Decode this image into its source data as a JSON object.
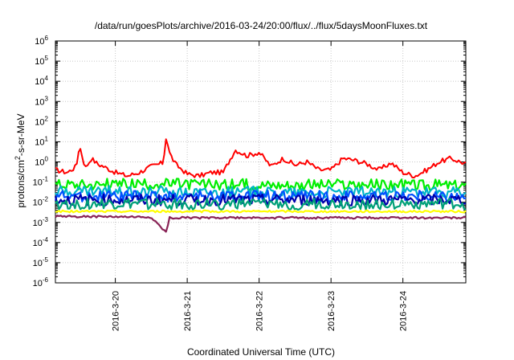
{
  "chart_data": {
    "type": "line",
    "title": "/data/run/goesPlots/archive/2016-03-24/20:00/flux/../flux/5daysMoonFluxes.txt",
    "xlabel": "Coordinated Universal Time (UTC)",
    "ylabel": {
      "prefix": "protons/cm",
      "superscript": "2",
      "suffix": "-s-sr-MeV"
    },
    "y_scale": "log",
    "ylim": [
      1e-06,
      1000000.0
    ],
    "y_ticks": [
      {
        "value": 1e-06,
        "base": "10",
        "exp": "-6"
      },
      {
        "value": 1e-05,
        "base": "10",
        "exp": "-5"
      },
      {
        "value": 0.0001,
        "base": "10",
        "exp": "-4"
      },
      {
        "value": 0.001,
        "base": "10",
        "exp": "-3"
      },
      {
        "value": 0.01,
        "base": "10",
        "exp": "-2"
      },
      {
        "value": 0.1,
        "base": "10",
        "exp": "-1"
      },
      {
        "value": 1.0,
        "base": "10",
        "exp": "0"
      },
      {
        "value": 10.0,
        "base": "10",
        "exp": "1"
      },
      {
        "value": 100.0,
        "base": "10",
        "exp": "2"
      },
      {
        "value": 1000.0,
        "base": "10",
        "exp": "3"
      },
      {
        "value": 10000.0,
        "base": "10",
        "exp": "4"
      },
      {
        "value": 100000.0,
        "base": "10",
        "exp": "5"
      },
      {
        "value": 1000000.0,
        "base": "10",
        "exp": "6"
      }
    ],
    "xlim": [
      "2016-03-19 04:00",
      "2016-03-24 21:00"
    ],
    "x_ticks": [
      {
        "value": "2016-03-20",
        "label": "2016-3-20"
      },
      {
        "value": "2016-03-21",
        "label": "2016-3-21"
      },
      {
        "value": "2016-03-22",
        "label": "2016-3-22"
      },
      {
        "value": "2016-03-23",
        "label": "2016-3-23"
      },
      {
        "value": "2016-03-24",
        "label": "2016-3-24"
      }
    ],
    "grid": true,
    "legend": "none",
    "series": [
      {
        "color": "#ff0000",
        "x": [
          "2016-03-19 04:00",
          "2016-03-19 08:00",
          "2016-03-19 11:00",
          "2016-03-19 12:00",
          "2016-03-19 14:00",
          "2016-03-19 16:00",
          "2016-03-19 18:00",
          "2016-03-19 20:00",
          "2016-03-20 00:00",
          "2016-03-20 04:00",
          "2016-03-20 08:00",
          "2016-03-20 12:00",
          "2016-03-20 16:00",
          "2016-03-20 17:00",
          "2016-03-20 18:00",
          "2016-03-20 20:00",
          "2016-03-21 00:00",
          "2016-03-21 04:00",
          "2016-03-21 08:00",
          "2016-03-21 12:00",
          "2016-03-21 16:00",
          "2016-03-21 20:00",
          "2016-03-22 00:00",
          "2016-03-22 04:00",
          "2016-03-22 08:00",
          "2016-03-22 12:00",
          "2016-03-22 16:00",
          "2016-03-22 20:00",
          "2016-03-23 00:00",
          "2016-03-23 04:00",
          "2016-03-23 08:00",
          "2016-03-23 12:00",
          "2016-03-23 16:00",
          "2016-03-23 20:00",
          "2016-03-24 00:00",
          "2016-03-24 04:00",
          "2016-03-24 08:00",
          "2016-03-24 12:00",
          "2016-03-24 16:00",
          "2016-03-24 21:00"
        ],
        "y": [
          0.4,
          0.3,
          0.6,
          7,
          0.5,
          1.5,
          0.8,
          0.6,
          0.3,
          0.2,
          0.3,
          0.6,
          0.9,
          20,
          3,
          0.8,
          0.25,
          0.2,
          0.3,
          0.3,
          4,
          2,
          3,
          0.6,
          1.5,
          0.7,
          1,
          0.4,
          0.4,
          1.5,
          1.2,
          0.8,
          0.4,
          0.9,
          0.3,
          0.2,
          0.4,
          1,
          1.5,
          0.8
        ]
      },
      {
        "color": "#00ee00",
        "x": [
          "2016-03-19 04:00",
          "2016-03-24 21:00"
        ],
        "y": [
          0.08,
          0.07
        ]
      },
      {
        "color": "#00b4c8",
        "x": [
          "2016-03-19 04:00",
          "2016-03-24 21:00"
        ],
        "y": [
          0.035,
          0.03
        ]
      },
      {
        "color": "#0050ff",
        "x": [
          "2016-03-19 04:00",
          "2016-03-24 21:00"
        ],
        "y": [
          0.02,
          0.02
        ]
      },
      {
        "color": "#0000aa",
        "x": [
          "2016-03-19 04:00",
          "2016-03-24 21:00"
        ],
        "y": [
          0.013,
          0.013
        ]
      },
      {
        "color": "#00a078",
        "x": [
          "2016-03-19 04:00",
          "2016-03-24 21:00"
        ],
        "y": [
          0.008,
          0.008
        ]
      },
      {
        "color": "#ffff00",
        "x": [
          "2016-03-19 04:00",
          "2016-03-24 21:00"
        ],
        "y": [
          0.0035,
          0.0035
        ]
      },
      {
        "color": "#882255",
        "x": [
          "2016-03-19 04:00",
          "2016-03-20 12:00",
          "2016-03-20 17:00",
          "2016-03-20 18:00",
          "2016-03-24 21:00"
        ],
        "y": [
          0.002,
          0.0018,
          0.0003,
          0.0017,
          0.0017
        ]
      }
    ]
  }
}
